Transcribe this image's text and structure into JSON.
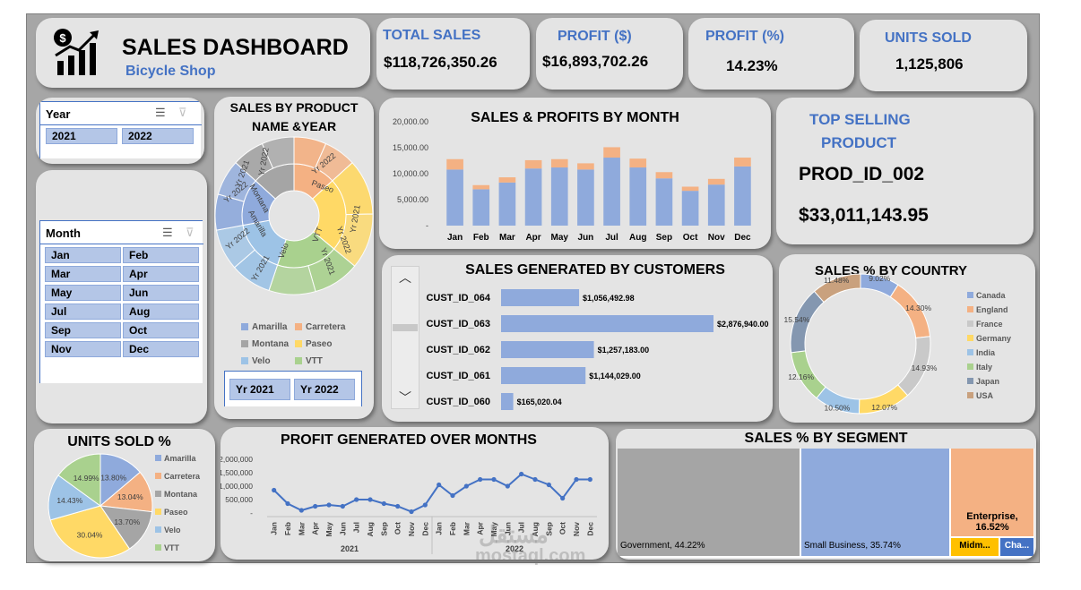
{
  "header": {
    "title": "SALES DASHBOARD",
    "subtitle": "Bicycle Shop"
  },
  "kpis": {
    "total_sales": {
      "label": "TOTAL SALES",
      "value": "$118,726,350.26"
    },
    "profit": {
      "label": "PROFIT ($)",
      "value": "$16,893,702.26"
    },
    "profit_pct": {
      "label": "PROFIT (%)",
      "value": "14.23%"
    },
    "units": {
      "label": "UNITS SOLD",
      "value": "1,125,806"
    }
  },
  "year_slicer": {
    "header": "Year",
    "items": [
      "2021",
      "2022"
    ]
  },
  "month_slicer": {
    "header": "Month",
    "items": [
      "Jan",
      "Feb",
      "Mar",
      "Apr",
      "May",
      "Jun",
      "Jul",
      "Aug",
      "Sep",
      "Oct",
      "Nov",
      "Dec"
    ]
  },
  "top_product": {
    "title_line1": "TOP SELLING",
    "title_line2": "PRODUCT",
    "id": "PROD_ID_002",
    "value": "$33,011,143.95"
  },
  "colors": {
    "blue": "#8faadc",
    "orange": "#f4b183",
    "gray": "#a5a5a5",
    "yellow": "#ffd966",
    "lightblue": "#9dc3e6",
    "green": "#a9d18e",
    "navy": "#8497b0",
    "brown": "#c9a17e",
    "accent": "#4472c4"
  },
  "chart_data": [
    {
      "id": "sunburst",
      "type": "pie",
      "title": "SALES BY PRODUCT NAME &YEAR",
      "outer_ring_label": "Yr 2021 / Yr 2022",
      "products": [
        "Carretera",
        "Paseo",
        "VTT",
        "Velo",
        "Amarilla",
        "Montana"
      ],
      "sunburst_text": [
        {
          "text": "Yr 2022"
        },
        {
          "text": "Yr 2021"
        },
        {
          "text": "Yr 2022"
        },
        {
          "text": "Montana"
        },
        {
          "text": "Yr 2022"
        },
        {
          "text": "Paseo"
        },
        {
          "text": "Yr 2021"
        },
        {
          "text": "VTT"
        },
        {
          "text": "Yr 2022"
        },
        {
          "text": "Yr 2021"
        },
        {
          "text": "Velo"
        },
        {
          "text": "Yr 2021"
        },
        {
          "text": "Amarilla"
        },
        {
          "text": "Yr 2022"
        }
      ],
      "legend": [
        {
          "name": "Amarilla",
          "color": "#8faadc"
        },
        {
          "name": "Carretera",
          "color": "#f4b183"
        },
        {
          "name": "Montana",
          "color": "#a5a5a5"
        },
        {
          "name": "Paseo",
          "color": "#ffd966"
        },
        {
          "name": "Velo",
          "color": "#9dc3e6"
        },
        {
          "name": "VTT",
          "color": "#a9d18e"
        }
      ],
      "year_buttons": [
        "Yr 2021",
        "Yr 2022"
      ]
    },
    {
      "id": "sales_profit_month",
      "type": "bar",
      "title": "SALES & PROFITS BY MONTH",
      "categories": [
        "Jan",
        "Feb",
        "Mar",
        "Apr",
        "May",
        "Jun",
        "Jul",
        "Aug",
        "Sep",
        "Oct",
        "Nov",
        "Dec"
      ],
      "series": [
        {
          "values": [
            10800,
            7000,
            8300,
            11000,
            11200,
            10800,
            13100,
            11200,
            9100,
            6700,
            7900,
            11400
          ],
          "color": "#8faadc"
        },
        {
          "values": [
            2000,
            800,
            1000,
            1600,
            1600,
            1200,
            2000,
            1700,
            1200,
            800,
            1100,
            1700
          ],
          "color": "#f4b183"
        }
      ],
      "ylim": [
        0,
        20000
      ],
      "yticks": [
        "20,000.00",
        "15,000.00",
        "10,000.00",
        "5,000.00",
        "-"
      ]
    },
    {
      "id": "sales_customers",
      "type": "bar",
      "title": "SALES GENERATED BY CUSTOMERS",
      "categories": [
        "CUST_ID_064",
        "CUST_ID_063",
        "CUST_ID_062",
        "CUST_ID_061",
        "CUST_ID_060"
      ],
      "values": [
        1056492.98,
        2876940.0,
        1257183.0,
        1144029.0,
        165020.04
      ],
      "labels": [
        "$1,056,492.98",
        "$2,876,940.00",
        "$1,257,183.00",
        "$1,144,029.00",
        "$165,020.04"
      ]
    },
    {
      "id": "sales_country",
      "type": "pie",
      "title": "SALES % BY COUNTRY",
      "categories": [
        "Canada",
        "England",
        "France",
        "Germany",
        "India",
        "Italy",
        "Japan",
        "USA"
      ],
      "values": [
        9.02,
        14.3,
        14.93,
        12.07,
        10.5,
        12.16,
        15.54,
        11.48
      ],
      "labels": [
        "9.02%",
        "14.30%",
        "14.93%",
        "12.07%",
        "10.50%",
        "12.16%",
        "15.54%",
        "11.48%"
      ],
      "colors": [
        "#8faadc",
        "#f4b183",
        "#c9c9c9",
        "#ffd966",
        "#9dc3e6",
        "#a9d18e",
        "#8497b0",
        "#c9a17e"
      ]
    },
    {
      "id": "units_pct",
      "type": "pie",
      "title": "UNITS SOLD %",
      "categories": [
        "Amarilla",
        "Carretera",
        "Montana",
        "Paseo",
        "Velo",
        "VTT"
      ],
      "values": [
        13.8,
        13.04,
        13.7,
        30.04,
        14.43,
        14.99
      ],
      "labels": [
        "13.80%",
        "13.04%",
        "13.70%",
        "30.04%",
        "14.43%",
        "14.99%"
      ],
      "colors": [
        "#8faadc",
        "#f4b183",
        "#a5a5a5",
        "#ffd966",
        "#9dc3e6",
        "#a9d18e"
      ]
    },
    {
      "id": "profit_months",
      "type": "line",
      "title": "PROFIT GENERATED OVER MONTHS",
      "categories": [
        "Jan",
        "Feb",
        "Mar",
        "Apr",
        "May",
        "Jun",
        "Jul",
        "Aug",
        "Sep",
        "Oct",
        "Nov",
        "Dec",
        "Jan",
        "Feb",
        "Mar",
        "Apr",
        "May",
        "Jun",
        "Jul",
        "Aug",
        "Sep",
        "Oct",
        "Nov",
        "Dec"
      ],
      "groups": [
        "2021",
        "2022"
      ],
      "values": [
        850000,
        350000,
        100000,
        250000,
        300000,
        250000,
        500000,
        500000,
        350000,
        250000,
        50000,
        300000,
        1050000,
        650000,
        1000000,
        1250000,
        1250000,
        1000000,
        1450000,
        1250000,
        1050000,
        550000,
        1250000,
        1250000
      ],
      "yticks": [
        "2,000,000",
        "1,500,000",
        "1,000,000",
        "500,000",
        "-"
      ],
      "ylim": [
        0,
        2000000
      ],
      "color": "#4472c4"
    },
    {
      "id": "sales_segment",
      "type": "heatmap",
      "title": "SALES % BY SEGMENT",
      "categories": [
        "Government",
        "Small Business",
        "Enterprise",
        "Midmarket",
        "Channel Partners"
      ],
      "labels": [
        "Government, 44.22%",
        "Small Business, 35.74%",
        "Enterprise, 16.52%",
        "Midm...",
        "Cha..."
      ],
      "values": [
        44.22,
        35.74,
        16.52,
        2.0,
        1.52
      ],
      "colors": [
        "#a5a5a5",
        "#8faadc",
        "#f4b183",
        "#ffc000",
        "#4472c4"
      ]
    }
  ],
  "watermark": {
    "text_ar": "مستقل",
    "text_en": "mostaql.com"
  }
}
